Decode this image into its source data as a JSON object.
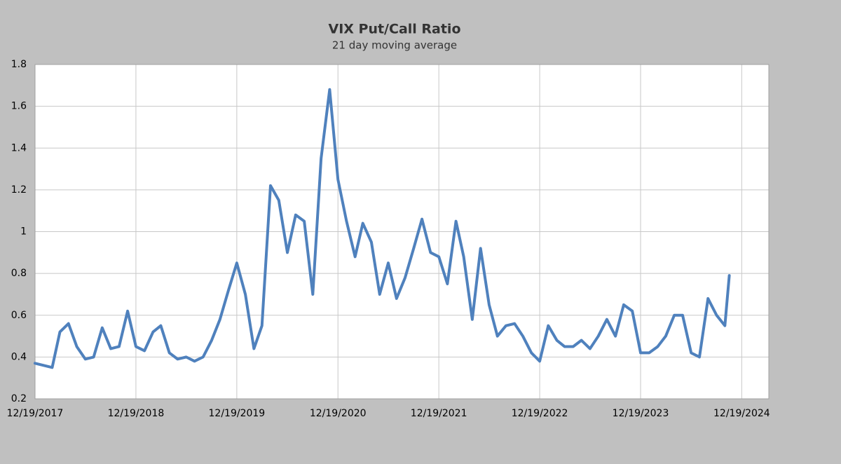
{
  "chart_data": {
    "type": "line",
    "title": "VIX Put/Call Ratio",
    "subtitle": "21 day moving average",
    "x": [
      "12/19/2017",
      "1/19/2018",
      "2/19/2018",
      "3/19/2018",
      "4/19/2018",
      "5/19/2018",
      "6/19/2018",
      "7/19/2018",
      "8/19/2018",
      "9/19/2018",
      "10/19/2018",
      "11/19/2018",
      "12/19/2018",
      "1/19/2019",
      "2/19/2019",
      "3/19/2019",
      "4/19/2019",
      "5/19/2019",
      "6/19/2019",
      "7/19/2019",
      "8/19/2019",
      "9/19/2019",
      "10/19/2019",
      "11/19/2019",
      "12/19/2019",
      "1/19/2020",
      "2/19/2020",
      "3/19/2020",
      "4/19/2020",
      "5/19/2020",
      "6/19/2020",
      "7/19/2020",
      "8/19/2020",
      "9/19/2020",
      "10/19/2020",
      "11/19/2020",
      "12/19/2020",
      "1/19/2021",
      "2/19/2021",
      "3/19/2021",
      "4/19/2021",
      "5/19/2021",
      "6/19/2021",
      "7/19/2021",
      "8/19/2021",
      "9/19/2021",
      "10/19/2021",
      "11/19/2021",
      "12/19/2021",
      "1/19/2022",
      "2/19/2022",
      "3/19/2022",
      "4/19/2022",
      "5/19/2022",
      "6/19/2022",
      "7/19/2022",
      "8/19/2022",
      "9/19/2022",
      "10/19/2022",
      "11/19/2022",
      "12/19/2022",
      "1/19/2023",
      "2/19/2023",
      "3/19/2023",
      "4/19/2023",
      "5/19/2023",
      "6/19/2023",
      "7/19/2023",
      "8/19/2023",
      "9/19/2023",
      "10/19/2023",
      "11/19/2023",
      "12/19/2023",
      "1/19/2024",
      "2/19/2024",
      "3/19/2024",
      "4/19/2024",
      "5/19/2024",
      "6/19/2024",
      "7/19/2024",
      "8/19/2024",
      "9/19/2024",
      "10/19/2024",
      "11/4/2024"
    ],
    "values": [
      0.37,
      0.36,
      0.35,
      0.52,
      0.56,
      0.45,
      0.39,
      0.4,
      0.54,
      0.44,
      0.45,
      0.62,
      0.45,
      0.43,
      0.52,
      0.55,
      0.42,
      0.39,
      0.4,
      0.38,
      0.4,
      0.48,
      0.58,
      0.72,
      0.85,
      0.7,
      0.44,
      0.55,
      1.22,
      1.15,
      0.9,
      1.08,
      1.05,
      0.7,
      1.35,
      1.68,
      1.25,
      1.05,
      0.88,
      1.04,
      0.95,
      0.7,
      0.85,
      0.68,
      0.78,
      0.92,
      1.06,
      0.9,
      0.88,
      0.75,
      1.05,
      0.88,
      0.58,
      0.92,
      0.65,
      0.5,
      0.55,
      0.56,
      0.5,
      0.42,
      0.38,
      0.55,
      0.48,
      0.45,
      0.45,
      0.48,
      0.44,
      0.5,
      0.58,
      0.5,
      0.65,
      0.62,
      0.42,
      0.42,
      0.45,
      0.5,
      0.6,
      0.6,
      0.42,
      0.4,
      0.68,
      0.6,
      0.55,
      0.79
    ],
    "color": "#4f81bd",
    "xlim": [
      "12/19/2017",
      "3/27/2025"
    ],
    "xticks": [
      "12/19/2017",
      "12/19/2018",
      "12/19/2019",
      "12/19/2020",
      "12/19/2021",
      "12/19/2022",
      "12/19/2023",
      "12/19/2024"
    ],
    "ylim": [
      0.2,
      1.8
    ],
    "yticks": [
      0.2,
      0.4,
      0.6,
      0.8,
      1,
      1.2,
      1.4,
      1.6,
      1.8
    ],
    "grid": true
  }
}
